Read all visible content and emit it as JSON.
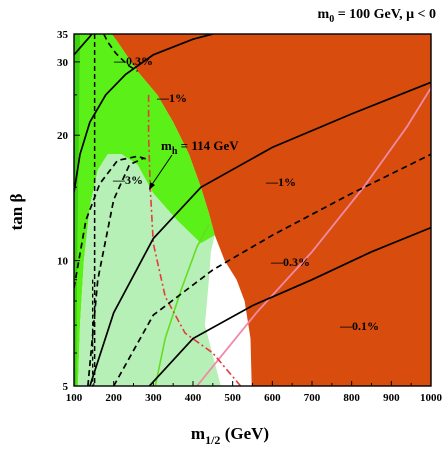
{
  "chart_data": {
    "type": "contour",
    "title": "m0 = 100 GeV,  μ < 0",
    "title_parts": {
      "m": "m",
      "sub": "0",
      "rest": " = 100 GeV,  μ < 0"
    },
    "xlabel": "m1/2 (GeV)",
    "xlabel_parts": {
      "m": "m",
      "sub": "1/2",
      "rest": " (GeV)"
    },
    "ylabel": "tan β",
    "xlim": [
      100,
      1000
    ],
    "ylim": [
      5,
      35
    ],
    "x_ticks": [
      100,
      200,
      300,
      400,
      500,
      600,
      700,
      800,
      900,
      1000
    ],
    "y_ticks": [
      5,
      10,
      20,
      30,
      35
    ],
    "colors": {
      "excluded_orange": "#d84c0e",
      "green_band": "#5af018",
      "light_green": "#b6f0b6",
      "contour": "#000000",
      "higgs_line": "#e83a3a",
      "pink_line": "#f08aa8",
      "dashed_vertical": "#000000"
    },
    "annotations": {
      "mh": {
        "m": "m",
        "sub": "h",
        "rest": " = 114 GeV"
      },
      "labels": [
        "—0.3%",
        "—1%",
        "—3%",
        "—1%",
        "—0.3%",
        "—0.1%"
      ]
    },
    "contours": [
      {
        "label": "-0.1%",
        "style": "solid",
        "points": [
          [
            290,
            5
          ],
          [
            400,
            6.5
          ],
          [
            550,
            7.8
          ],
          [
            700,
            9
          ],
          [
            850,
            10.5
          ],
          [
            1000,
            12
          ]
        ]
      },
      {
        "label": "-0.3%",
        "style": "dashed",
        "points": [
          [
            200,
            5
          ],
          [
            300,
            7.4
          ],
          [
            450,
            9.5
          ],
          [
            600,
            11.5
          ],
          [
            800,
            14.5
          ],
          [
            1000,
            18
          ]
        ]
      },
      {
        "label": "-1%",
        "style": "solid",
        "points": [
          [
            140,
            5
          ],
          [
            200,
            7.5
          ],
          [
            300,
            11.3
          ],
          [
            420,
            15
          ],
          [
            600,
            18.7
          ],
          [
            800,
            22.5
          ],
          [
            1000,
            26.8
          ]
        ]
      },
      {
        "label": "-3%",
        "style": "dashed",
        "points": [
          [
            100,
            8.6
          ],
          [
            130,
            12.5
          ],
          [
            165,
            15.3
          ],
          [
            210,
            17.4
          ],
          [
            260,
            17.8
          ],
          [
            285,
            17.5
          ]
        ]
      },
      {
        "label": "-1%",
        "style": "solid",
        "points": [
          [
            100,
            14.6
          ],
          [
            115,
            18
          ],
          [
            140,
            21.5
          ],
          [
            180,
            25
          ],
          [
            230,
            28
          ],
          [
            300,
            31.2
          ],
          [
            400,
            34
          ],
          [
            450,
            35
          ]
        ]
      },
      {
        "label": "-0.3%",
        "style": "solid",
        "points": [
          [
            100,
            31.2
          ],
          [
            120,
            32.8
          ],
          [
            140,
            34.5
          ],
          [
            145,
            35
          ]
        ]
      },
      {
        "label": "-0.3% dashed",
        "style": "dashed",
        "points": [
          [
            135,
            5
          ],
          [
            160,
            9
          ],
          [
            200,
            14
          ],
          [
            240,
            17
          ],
          [
            275,
            17.6
          ]
        ]
      }
    ]
  }
}
